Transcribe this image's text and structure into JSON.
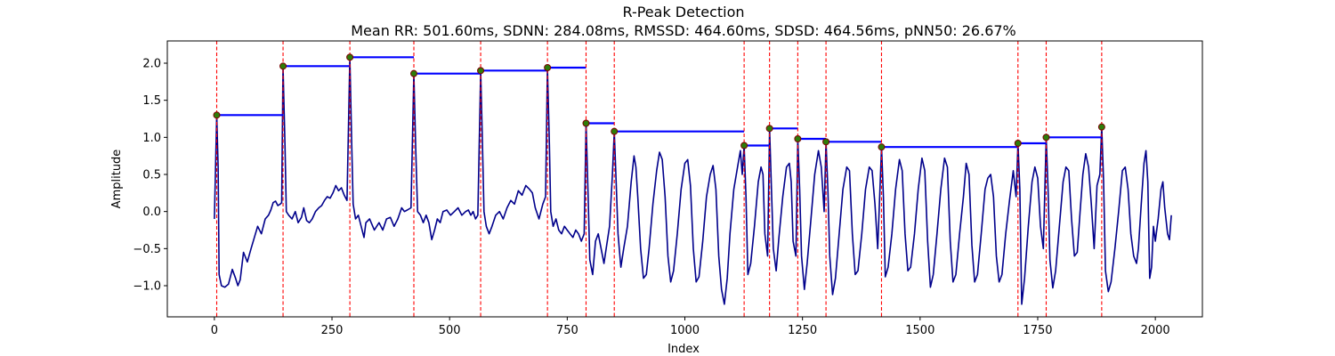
{
  "chart_data": {
    "type": "line",
    "title": "R-Peak Detection",
    "subtitle": "Mean RR: 501.60ms, SDNN: 284.08ms, RMSSD: 464.60ms, SDSD: 464.56ms, pNN50: 26.67%",
    "xlabel": "Index",
    "ylabel": "Amplitude",
    "xlim": [
      -100,
      2100
    ],
    "ylim": [
      -1.42,
      2.3
    ],
    "x_ticks": [
      0,
      250,
      500,
      750,
      1000,
      1250,
      1500,
      1750,
      2000
    ],
    "y_ticks": [
      -1.0,
      -0.5,
      0.0,
      0.5,
      1.0,
      1.5,
      2.0
    ],
    "grid": false,
    "signal": {
      "color": "#00008b",
      "points": [
        [
          0,
          -0.1
        ],
        [
          5,
          1.3
        ],
        [
          8,
          0.6
        ],
        [
          10,
          -0.85
        ],
        [
          15,
          -1.0
        ],
        [
          22,
          -1.02
        ],
        [
          30,
          -0.98
        ],
        [
          38,
          -0.78
        ],
        [
          45,
          -0.9
        ],
        [
          50,
          -1.0
        ],
        [
          55,
          -0.92
        ],
        [
          62,
          -0.55
        ],
        [
          70,
          -0.68
        ],
        [
          78,
          -0.5
        ],
        [
          85,
          -0.35
        ],
        [
          92,
          -0.2
        ],
        [
          100,
          -0.3
        ],
        [
          108,
          -0.1
        ],
        [
          115,
          -0.05
        ],
        [
          120,
          0.02
        ],
        [
          125,
          0.12
        ],
        [
          130,
          0.14
        ],
        [
          135,
          0.08
        ],
        [
          140,
          0.1
        ],
        [
          143,
          0.12
        ],
        [
          146,
          1.96
        ],
        [
          150,
          0.9
        ],
        [
          153,
          0.0
        ],
        [
          158,
          -0.05
        ],
        [
          165,
          -0.1
        ],
        [
          172,
          0.0
        ],
        [
          178,
          -0.15
        ],
        [
          185,
          -0.08
        ],
        [
          190,
          0.05
        ],
        [
          196,
          -0.12
        ],
        [
          202,
          -0.15
        ],
        [
          208,
          -0.1
        ],
        [
          215,
          0.0
        ],
        [
          222,
          0.05
        ],
        [
          228,
          0.08
        ],
        [
          234,
          0.15
        ],
        [
          240,
          0.2
        ],
        [
          246,
          0.18
        ],
        [
          252,
          0.25
        ],
        [
          258,
          0.35
        ],
        [
          264,
          0.28
        ],
        [
          270,
          0.32
        ],
        [
          276,
          0.22
        ],
        [
          282,
          0.15
        ],
        [
          288,
          2.08
        ],
        [
          292,
          0.9
        ],
        [
          295,
          0.1
        ],
        [
          300,
          -0.1
        ],
        [
          306,
          -0.05
        ],
        [
          312,
          -0.2
        ],
        [
          318,
          -0.35
        ],
        [
          322,
          -0.15
        ],
        [
          330,
          -0.1
        ],
        [
          340,
          -0.25
        ],
        [
          350,
          -0.15
        ],
        [
          358,
          -0.25
        ],
        [
          366,
          -0.1
        ],
        [
          374,
          -0.08
        ],
        [
          382,
          -0.2
        ],
        [
          390,
          -0.1
        ],
        [
          398,
          0.05
        ],
        [
          404,
          0.0
        ],
        [
          410,
          0.02
        ],
        [
          418,
          0.05
        ],
        [
          424,
          1.86
        ],
        [
          428,
          0.85
        ],
        [
          432,
          0.0
        ],
        [
          438,
          -0.05
        ],
        [
          444,
          -0.15
        ],
        [
          450,
          -0.05
        ],
        [
          456,
          -0.15
        ],
        [
          462,
          -0.38
        ],
        [
          468,
          -0.25
        ],
        [
          474,
          -0.1
        ],
        [
          480,
          -0.15
        ],
        [
          486,
          0.0
        ],
        [
          494,
          0.02
        ],
        [
          502,
          -0.05
        ],
        [
          510,
          0.0
        ],
        [
          518,
          0.05
        ],
        [
          526,
          -0.05
        ],
        [
          534,
          0.0
        ],
        [
          540,
          0.02
        ],
        [
          545,
          -0.05
        ],
        [
          550,
          0.0
        ],
        [
          555,
          -0.1
        ],
        [
          560,
          -0.05
        ],
        [
          566,
          1.9
        ],
        [
          570,
          0.85
        ],
        [
          573,
          0.0
        ],
        [
          578,
          -0.2
        ],
        [
          584,
          -0.3
        ],
        [
          590,
          -0.2
        ],
        [
          598,
          -0.05
        ],
        [
          606,
          0.0
        ],
        [
          614,
          -0.1
        ],
        [
          622,
          0.05
        ],
        [
          630,
          0.15
        ],
        [
          638,
          0.1
        ],
        [
          646,
          0.28
        ],
        [
          654,
          0.22
        ],
        [
          662,
          0.35
        ],
        [
          670,
          0.3
        ],
        [
          676,
          0.25
        ],
        [
          682,
          0.05
        ],
        [
          690,
          -0.1
        ],
        [
          698,
          0.1
        ],
        [
          704,
          0.2
        ],
        [
          708,
          1.94
        ],
        [
          712,
          0.9
        ],
        [
          715,
          0.0
        ],
        [
          720,
          -0.2
        ],
        [
          726,
          -0.1
        ],
        [
          732,
          -0.25
        ],
        [
          738,
          -0.3
        ],
        [
          744,
          -0.2
        ],
        [
          750,
          -0.25
        ],
        [
          756,
          -0.3
        ],
        [
          762,
          -0.35
        ],
        [
          768,
          -0.25
        ],
        [
          774,
          -0.3
        ],
        [
          780,
          -0.4
        ],
        [
          786,
          -0.3
        ],
        [
          790,
          1.19
        ],
        [
          794,
          0.3
        ],
        [
          798,
          -0.65
        ],
        [
          804,
          -0.85
        ],
        [
          810,
          -0.4
        ],
        [
          816,
          -0.3
        ],
        [
          822,
          -0.5
        ],
        [
          828,
          -0.7
        ],
        [
          834,
          -0.45
        ],
        [
          840,
          -0.2
        ],
        [
          846,
          0.5
        ],
        [
          850,
          1.08
        ],
        [
          854,
          0.4
        ],
        [
          858,
          -0.3
        ],
        [
          864,
          -0.75
        ],
        [
          870,
          -0.5
        ],
        [
          878,
          -0.2
        ],
        [
          886,
          0.4
        ],
        [
          892,
          0.75
        ],
        [
          896,
          0.6
        ],
        [
          900,
          0.2
        ],
        [
          906,
          -0.5
        ],
        [
          912,
          -0.9
        ],
        [
          918,
          -0.85
        ],
        [
          924,
          -0.5
        ],
        [
          932,
          0.1
        ],
        [
          940,
          0.55
        ],
        [
          946,
          0.8
        ],
        [
          952,
          0.7
        ],
        [
          958,
          0.2
        ],
        [
          964,
          -0.6
        ],
        [
          970,
          -0.95
        ],
        [
          976,
          -0.8
        ],
        [
          984,
          -0.3
        ],
        [
          992,
          0.3
        ],
        [
          1000,
          0.65
        ],
        [
          1006,
          0.7
        ],
        [
          1012,
          0.35
        ],
        [
          1018,
          -0.5
        ],
        [
          1024,
          -0.95
        ],
        [
          1030,
          -0.88
        ],
        [
          1038,
          -0.4
        ],
        [
          1046,
          0.2
        ],
        [
          1054,
          0.5
        ],
        [
          1060,
          0.62
        ],
        [
          1066,
          0.3
        ],
        [
          1072,
          -0.6
        ],
        [
          1078,
          -1.05
        ],
        [
          1084,
          -1.25
        ],
        [
          1090,
          -0.9
        ],
        [
          1096,
          -0.3
        ],
        [
          1104,
          0.3
        ],
        [
          1112,
          0.6
        ],
        [
          1118,
          0.82
        ],
        [
          1122,
          0.5
        ],
        [
          1126,
          0.89
        ],
        [
          1130,
          0.2
        ],
        [
          1134,
          -0.85
        ],
        [
          1140,
          -0.7
        ],
        [
          1148,
          -0.2
        ],
        [
          1156,
          0.4
        ],
        [
          1162,
          0.6
        ],
        [
          1166,
          0.5
        ],
        [
          1170,
          -0.3
        ],
        [
          1176,
          -0.6
        ],
        [
          1180,
          1.12
        ],
        [
          1184,
          0.3
        ],
        [
          1188,
          -0.5
        ],
        [
          1194,
          -0.8
        ],
        [
          1200,
          -0.35
        ],
        [
          1208,
          0.2
        ],
        [
          1216,
          0.6
        ],
        [
          1222,
          0.65
        ],
        [
          1226,
          0.4
        ],
        [
          1230,
          -0.4
        ],
        [
          1236,
          -0.6
        ],
        [
          1240,
          0.98
        ],
        [
          1244,
          0.3
        ],
        [
          1248,
          -0.6
        ],
        [
          1254,
          -1.05
        ],
        [
          1260,
          -0.7
        ],
        [
          1268,
          -0.1
        ],
        [
          1276,
          0.5
        ],
        [
          1284,
          0.82
        ],
        [
          1290,
          0.6
        ],
        [
          1296,
          0.0
        ],
        [
          1300,
          0.94
        ],
        [
          1304,
          0.3
        ],
        [
          1308,
          -0.6
        ],
        [
          1314,
          -1.12
        ],
        [
          1320,
          -0.9
        ],
        [
          1328,
          -0.3
        ],
        [
          1336,
          0.3
        ],
        [
          1344,
          0.6
        ],
        [
          1350,
          0.55
        ],
        [
          1356,
          -0.3
        ],
        [
          1362,
          -0.85
        ],
        [
          1368,
          -0.8
        ],
        [
          1376,
          -0.3
        ],
        [
          1384,
          0.3
        ],
        [
          1392,
          0.6
        ],
        [
          1398,
          0.55
        ],
        [
          1404,
          0.1
        ],
        [
          1410,
          -0.5
        ],
        [
          1418,
          0.87
        ],
        [
          1422,
          0.2
        ],
        [
          1426,
          -0.88
        ],
        [
          1432,
          -0.75
        ],
        [
          1440,
          -0.3
        ],
        [
          1448,
          0.3
        ],
        [
          1456,
          0.7
        ],
        [
          1462,
          0.55
        ],
        [
          1468,
          -0.3
        ],
        [
          1474,
          -0.8
        ],
        [
          1480,
          -0.75
        ],
        [
          1488,
          -0.3
        ],
        [
          1496,
          0.3
        ],
        [
          1504,
          0.72
        ],
        [
          1510,
          0.55
        ],
        [
          1516,
          -0.4
        ],
        [
          1522,
          -1.02
        ],
        [
          1528,
          -0.85
        ],
        [
          1536,
          -0.3
        ],
        [
          1544,
          0.3
        ],
        [
          1552,
          0.72
        ],
        [
          1558,
          0.6
        ],
        [
          1564,
          -0.4
        ],
        [
          1570,
          -0.95
        ],
        [
          1576,
          -0.85
        ],
        [
          1584,
          -0.3
        ],
        [
          1592,
          0.2
        ],
        [
          1598,
          0.65
        ],
        [
          1604,
          0.5
        ],
        [
          1610,
          -0.45
        ],
        [
          1616,
          -0.95
        ],
        [
          1622,
          -0.85
        ],
        [
          1630,
          -0.3
        ],
        [
          1638,
          0.3
        ],
        [
          1644,
          0.45
        ],
        [
          1650,
          0.5
        ],
        [
          1656,
          0.2
        ],
        [
          1662,
          -0.6
        ],
        [
          1668,
          -0.95
        ],
        [
          1674,
          -0.85
        ],
        [
          1682,
          -0.3
        ],
        [
          1690,
          0.15
        ],
        [
          1698,
          0.55
        ],
        [
          1704,
          0.2
        ],
        [
          1708,
          0.92
        ],
        [
          1712,
          0.3
        ],
        [
          1716,
          -1.25
        ],
        [
          1722,
          -0.9
        ],
        [
          1730,
          -0.2
        ],
        [
          1738,
          0.4
        ],
        [
          1744,
          0.6
        ],
        [
          1750,
          0.45
        ],
        [
          1756,
          -0.2
        ],
        [
          1762,
          -0.5
        ],
        [
          1768,
          1.0
        ],
        [
          1772,
          0.3
        ],
        [
          1776,
          -0.65
        ],
        [
          1782,
          -1.03
        ],
        [
          1788,
          -0.8
        ],
        [
          1796,
          -0.2
        ],
        [
          1804,
          0.4
        ],
        [
          1810,
          0.6
        ],
        [
          1816,
          0.55
        ],
        [
          1822,
          -0.1
        ],
        [
          1828,
          -0.6
        ],
        [
          1834,
          -0.55
        ],
        [
          1840,
          0.0
        ],
        [
          1846,
          0.5
        ],
        [
          1852,
          0.78
        ],
        [
          1858,
          0.6
        ],
        [
          1864,
          0.1
        ],
        [
          1870,
          -0.5
        ],
        [
          1876,
          0.35
        ],
        [
          1882,
          0.5
        ],
        [
          1886,
          1.14
        ],
        [
          1890,
          0.4
        ],
        [
          1894,
          -0.8
        ],
        [
          1900,
          -1.08
        ],
        [
          1906,
          -0.95
        ],
        [
          1914,
          -0.5
        ],
        [
          1922,
          0.0
        ],
        [
          1930,
          0.55
        ],
        [
          1936,
          0.6
        ],
        [
          1942,
          0.3
        ],
        [
          1948,
          -0.3
        ],
        [
          1954,
          -0.6
        ],
        [
          1960,
          -0.7
        ],
        [
          1964,
          -0.5
        ],
        [
          1970,
          0.1
        ],
        [
          1976,
          0.65
        ],
        [
          1980,
          0.82
        ],
        [
          1984,
          0.4
        ],
        [
          1988,
          -0.9
        ],
        [
          1992,
          -0.75
        ],
        [
          1996,
          -0.2
        ],
        [
          2000,
          -0.4
        ],
        [
          2006,
          -0.1
        ],
        [
          2012,
          0.3
        ],
        [
          2016,
          0.4
        ],
        [
          2020,
          0.05
        ],
        [
          2026,
          -0.3
        ],
        [
          2030,
          -0.38
        ],
        [
          2034,
          -0.05
        ]
      ]
    },
    "r_peaks": {
      "marker_color": "#2e7d0a",
      "edge_color": "#7a0000",
      "line_color": "#ff0000",
      "indices": [
        5,
        146,
        288,
        424,
        566,
        708,
        790,
        850,
        1126,
        1180,
        1240,
        1300,
        1418,
        1708,
        1768,
        1886
      ],
      "amplitudes": [
        1.3,
        1.96,
        2.08,
        1.86,
        1.9,
        1.94,
        1.19,
        1.08,
        0.89,
        1.12,
        0.98,
        0.94,
        0.87,
        0.92,
        1.0,
        1.14
      ]
    },
    "rr_segments": {
      "color": "#0000ff"
    }
  }
}
